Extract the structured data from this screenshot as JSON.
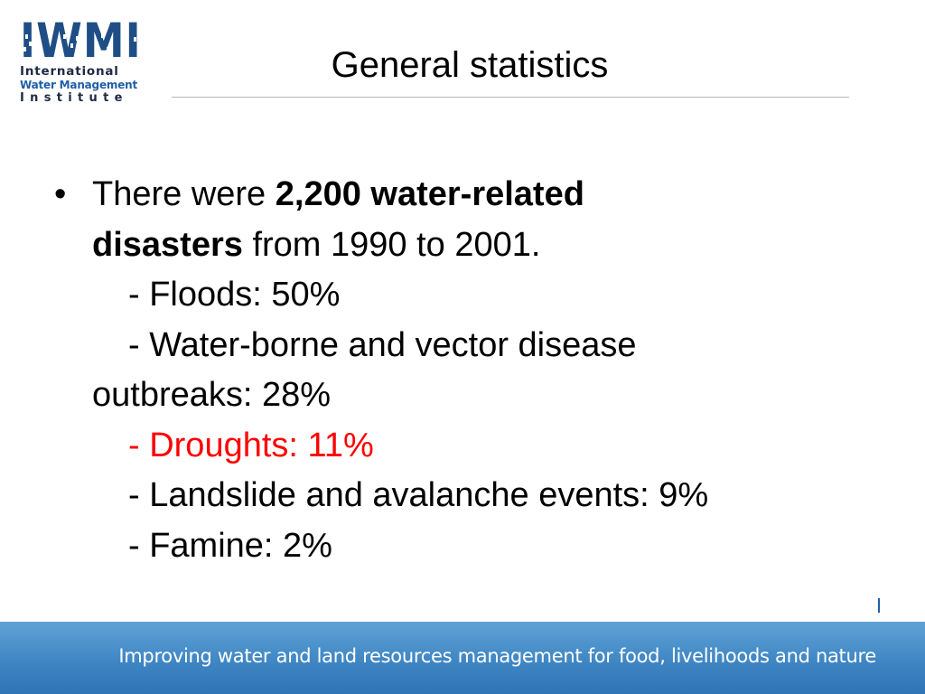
{
  "logo": {
    "wordmark": "IWMI",
    "line1": "International",
    "line2": "Water Management",
    "line3": "Institute"
  },
  "slide": {
    "title": "General statistics",
    "bullet": {
      "intro": "There were ",
      "bold1": "2,200 water-related",
      "bold2": "disasters",
      "tail": " from 1990 to 2001."
    },
    "items": {
      "floods": "- Floods: 50%",
      "waterborne_line1": "- Water-borne and vector disease",
      "waterborne_line2": "outbreaks: 28%",
      "droughts": "- Droughts: 11%",
      "landslide": "- Landslide and avalanche events: 9%",
      "famine": "- Famine: 2%"
    }
  },
  "footer": {
    "tagline": "Improving water and land resources management for food, livelihoods and nature"
  },
  "colors": {
    "brand_blue": "#1f4e86",
    "footer_blue": "#3f86c4",
    "highlight_red": "#ff0000"
  }
}
